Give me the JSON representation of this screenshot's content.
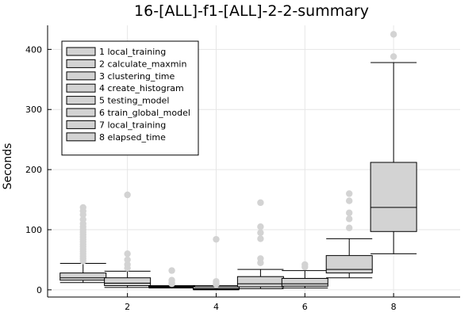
{
  "chart_data": {
    "type": "box",
    "title": "16-[ALL]-f1-[ALL]-2-2-summary",
    "xlabel": "",
    "ylabel": "Seconds",
    "xlim": [
      0.2,
      9.5
    ],
    "ylim": [
      -12,
      440
    ],
    "xticks": [
      2,
      4,
      6,
      8
    ],
    "yticks": [
      0,
      100,
      200,
      300,
      400
    ],
    "grid": true,
    "legend": "top-left",
    "colors": {
      "box_fill": "#d3d3d3",
      "outlier": "#d3d3d3",
      "line": "#000000",
      "grid": "#e6e6e6"
    },
    "series": [
      {
        "name": "1 local_training",
        "x": 1,
        "whisker_low": 12,
        "q1": 16,
        "median": 20,
        "q3": 28,
        "whisker_high": 44,
        "outliers": [
          48,
          52,
          56,
          60,
          64,
          68,
          72,
          76,
          80,
          84,
          88,
          92,
          96,
          100,
          105,
          110,
          117,
          125,
          131,
          137
        ]
      },
      {
        "name": "2 calculate_maxmin",
        "x": 2,
        "whisker_low": 4,
        "q1": 7,
        "median": 11,
        "q3": 20,
        "whisker_high": 31,
        "outliers": [
          36,
          42,
          50,
          60,
          158
        ]
      },
      {
        "name": "3 clustering_time",
        "x": 3,
        "whisker_low": 3,
        "q1": 4,
        "median": 5,
        "q3": 6,
        "whisker_high": 7,
        "outliers": [
          10,
          12,
          16,
          32
        ]
      },
      {
        "name": "4 create_histogram",
        "x": 4,
        "whisker_low": 0,
        "q1": 1,
        "median": 2,
        "q3": 5,
        "whisker_high": 7,
        "outliers": [
          9,
          11,
          14,
          84
        ]
      },
      {
        "name": "5 testing_model",
        "x": 5,
        "whisker_low": 2,
        "q1": 5,
        "median": 10,
        "q3": 22,
        "whisker_high": 34,
        "outliers": [
          45,
          52,
          85,
          95,
          105,
          145
        ]
      },
      {
        "name": "6 train_global_model",
        "x": 6,
        "whisker_low": 3,
        "q1": 6,
        "median": 10,
        "q3": 19,
        "whisker_high": 32,
        "outliers": [
          38,
          42
        ]
      },
      {
        "name": "7 local_training",
        "x": 7,
        "whisker_low": 20,
        "q1": 28,
        "median": 34,
        "q3": 57,
        "whisker_high": 85,
        "outliers": [
          103,
          118,
          128,
          148,
          160
        ]
      },
      {
        "name": "8 elapsed_time",
        "x": 8,
        "whisker_low": 60,
        "q1": 97,
        "median": 137,
        "q3": 212,
        "whisker_high": 378,
        "outliers": [
          388,
          425
        ]
      }
    ]
  }
}
